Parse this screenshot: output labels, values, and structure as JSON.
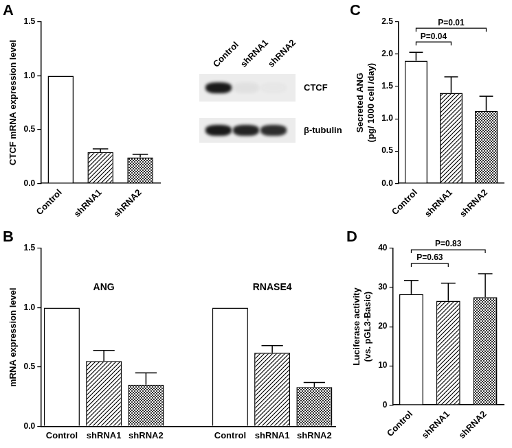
{
  "chart_data": [
    {
      "panel": "A",
      "type": "bar",
      "y_label": "CTCF mRNA expression level",
      "categories": [
        "Control",
        "shRNA1",
        "shRNA2"
      ],
      "values": [
        1.0,
        0.29,
        0.24
      ],
      "errors": [
        0,
        0.03,
        0.03
      ],
      "colors": [
        "#ffffff",
        "#ffffff",
        "#ffffff"
      ],
      "ylim": [
        0,
        1.5
      ],
      "yticks": [
        {
          "value": 0,
          "label": "0.0"
        },
        0.5,
        {
          "value": 1,
          "label": "1.0"
        },
        1.5
      ],
      "grid": false
    },
    {
      "panel": "B",
      "type": "bar",
      "y_label": "mRNA expression level",
      "categories": [
        "Control",
        "shRNA1",
        "shRNA2"
      ],
      "series": [
        {
          "name": "ANG",
          "values": [
            1.0,
            0.55,
            0.35
          ],
          "errors": [
            0,
            0.09,
            0.1
          ]
        },
        {
          "name": "RNASE4",
          "values": [
            1.0,
            0.62,
            0.33
          ],
          "errors": [
            0,
            0.06,
            0.04
          ]
        }
      ],
      "colors": [
        "#ffffff",
        "#ffffff",
        "#ffffff"
      ],
      "ylim": [
        0,
        1.5
      ],
      "yticks": [
        {
          "value": 0,
          "label": "0.0"
        },
        0.5,
        {
          "value": 1,
          "label": "1.0"
        },
        1.5
      ],
      "grid": false
    },
    {
      "panel": "C",
      "type": "bar",
      "y_label": [
        "Secreted ANG",
        "(pg/ 1000 cell /day)"
      ],
      "categories": [
        "Control",
        "shRNA1",
        "shRNA2"
      ],
      "values": [
        1.9,
        1.4,
        1.12
      ],
      "errors": [
        0.13,
        0.25,
        0.23
      ],
      "colors": [
        "#ffffff",
        "#ffffff",
        "#ffffff"
      ],
      "ylim": [
        0,
        2.5
      ],
      "yticks": [
        {
          "value": 0,
          "label": "0.0"
        },
        0.5,
        {
          "value": 1,
          "label": "1.0"
        },
        1.5,
        {
          "value": 2,
          "label": "2.0"
        },
        2.5
      ],
      "grid": false,
      "annotations": [
        {
          "text": "P=0.04",
          "between": [
            "Control",
            "shRNA1"
          ]
        },
        {
          "text": "P=0.01",
          "between": [
            "Control",
            "shRNA2"
          ]
        }
      ]
    },
    {
      "panel": "D",
      "type": "bar",
      "y_label": [
        "Luciferase activity",
        "(vs. pGL3-Basic)"
      ],
      "categories": [
        "Control",
        "shRNA1",
        "shRNA2"
      ],
      "values": [
        28.3,
        26.6,
        27.5
      ],
      "errors": [
        3.5,
        4.5,
        6.0
      ],
      "colors": [
        "#ffffff",
        "#ffffff",
        "#ffffff"
      ],
      "ylim": [
        0,
        40
      ],
      "yticks": [
        0,
        10,
        20,
        30,
        40
      ],
      "grid": false,
      "annotations": [
        {
          "text": "P=0.63",
          "between": [
            "Control",
            "shRNA1"
          ]
        },
        {
          "text": "P=0.83",
          "between": [
            "Control",
            "shRNA2"
          ]
        }
      ]
    }
  ],
  "blot": {
    "lanes": [
      "Control",
      "shRNA1",
      "shRNA2"
    ],
    "rows": [
      {
        "label": "CTCF",
        "intensity": [
          1.0,
          0.05,
          0.02
        ]
      },
      {
        "label": "β-tubulin",
        "intensity": [
          1.0,
          0.95,
          0.9
        ]
      }
    ]
  }
}
